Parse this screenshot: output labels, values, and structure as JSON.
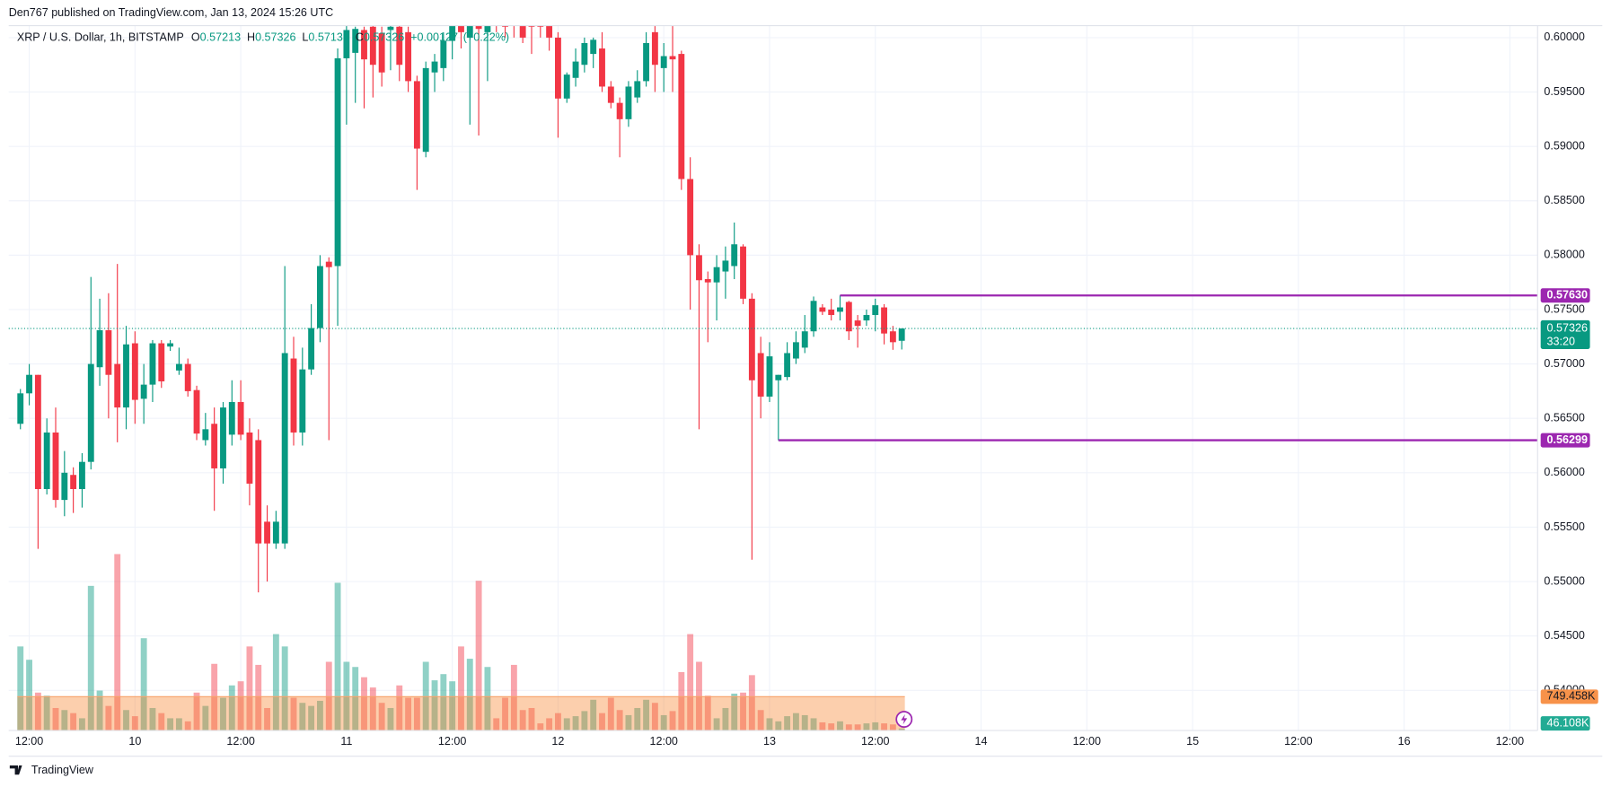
{
  "header": {
    "published": "Den767 published on TradingView.com, Jan 13, 2024 15:26 UTC"
  },
  "footer": {
    "brand": "TradingView"
  },
  "chart_data": {
    "type": "candlestick",
    "title": "XRP / U.S. Dollar, 1h, BITSTAMP",
    "ohlc": [
      {
        "key": "O",
        "value": 0.57213
      },
      {
        "key": "H",
        "value": 0.57326
      },
      {
        "key": "L",
        "value": 0.57133
      },
      {
        "key": "C",
        "value": 0.57326
      }
    ],
    "change": {
      "value": 0.00127,
      "label": "+0.00127"
    },
    "change_pct": {
      "value": 0.22,
      "label": "(+0.22%)"
    },
    "up_color": "#089981",
    "down_color": "#f23645",
    "x": [
      9.4583,
      9.5,
      9.5417,
      9.5833,
      9.625,
      9.6667,
      9.7083,
      9.75,
      9.7917,
      9.8333,
      9.875,
      9.9167,
      9.9583,
      10,
      10.0417,
      10.0833,
      10.125,
      10.1667,
      10.2083,
      10.25,
      10.2917,
      10.3333,
      10.375,
      10.4167,
      10.4583,
      10.5,
      10.5417,
      10.5833,
      10.625,
      10.6667,
      10.7083,
      10.75,
      10.7917,
      10.8333,
      10.875,
      10.9167,
      10.9583,
      11,
      11.0417,
      11.0833,
      11.125,
      11.1667,
      11.2083,
      11.25,
      11.2917,
      11.3333,
      11.375,
      11.4167,
      11.4583,
      11.5,
      11.5417,
      11.5833,
      11.625,
      11.6667,
      11.7083,
      11.75,
      11.7917,
      11.8333,
      11.875,
      11.9167,
      11.9583,
      12,
      12.0417,
      12.0833,
      12.125,
      12.1667,
      12.2083,
      12.25,
      12.2917,
      12.3333,
      12.375,
      12.4167,
      12.4583,
      12.5,
      12.5417,
      12.5833,
      12.625,
      12.6667,
      12.7083,
      12.75,
      12.7917,
      12.8333,
      12.875,
      12.9167,
      12.9583,
      13,
      13.0417,
      13.0833,
      13.125,
      13.1667,
      13.2083,
      13.25,
      13.2917,
      13.3333,
      13.375,
      13.4167,
      13.4583,
      13.5,
      13.5417,
      13.5833,
      13.625
    ],
    "open": [
      0.5645,
      0.5673,
      0.569,
      0.5585,
      0.5637,
      0.5575,
      0.5598,
      0.5585,
      0.561,
      0.5697,
      0.5731,
      0.57,
      0.566,
      0.5719,
      0.5668,
      0.5681,
      0.5719,
      0.5716,
      0.5694,
      0.57,
      0.5676,
      0.563,
      0.5645,
      0.5604,
      0.5635,
      0.5665,
      0.5637,
      0.563,
      0.5555,
      0.5535,
      0.5535,
      0.5705,
      0.5637,
      0.5695,
      0.5733,
      0.5794,
      0.579,
      0.5981,
      0.5986,
      0.6007,
      0.601,
      0.6004,
      0.6007,
      0.601,
      0.6005,
      0.596,
      0.5895,
      0.5968,
      0.5972,
      0.5997,
      0.602,
      0.6,
      0.6015,
      0.6005,
      0.6025,
      0.602,
      0.6015,
      0.6014,
      0.602,
      0.6025,
      0.6015,
      0.6,
      0.5944,
      0.5963,
      0.5975,
      0.5985,
      0.599,
      0.5955,
      0.594,
      0.5925,
      0.5945,
      0.596,
      0.6005,
      0.5972,
      0.5983,
      0.5985,
      0.587,
      0.58,
      0.5778,
      0.5775,
      0.5785,
      0.579,
      0.5808,
      0.576,
      0.571,
      0.567,
      0.5685,
      0.5688,
      0.5705,
      0.5715,
      0.573,
      0.5752,
      0.575,
      0.5748,
      0.5757,
      0.574,
      0.574,
      0.5745,
      0.5752,
      0.573,
      0.57213
    ],
    "high": [
      0.5677,
      0.57,
      0.569,
      0.565,
      0.566,
      0.562,
      0.5605,
      0.5618,
      0.578,
      0.576,
      0.5765,
      0.5792,
      0.5735,
      0.573,
      0.57,
      0.5722,
      0.5722,
      0.5722,
      0.5715,
      0.5705,
      0.568,
      0.5655,
      0.566,
      0.5665,
      0.5685,
      0.5685,
      0.565,
      0.564,
      0.557,
      0.5565,
      0.579,
      0.5725,
      0.5715,
      0.5755,
      0.58,
      0.5798,
      0.599,
      0.6015,
      0.601,
      0.601,
      0.6012,
      0.601,
      0.6015,
      0.6015,
      0.601,
      0.5965,
      0.5978,
      0.5985,
      0.6005,
      0.602,
      0.603,
      0.603,
      0.6025,
      0.602,
      0.6035,
      0.603,
      0.602,
      0.602,
      0.6025,
      0.603,
      0.6025,
      0.6005,
      0.5968,
      0.599,
      0.6,
      0.6,
      0.6005,
      0.596,
      0.5945,
      0.596,
      0.597,
      0.6005,
      0.6012,
      0.5995,
      0.6012,
      0.5988,
      0.589,
      0.581,
      0.5785,
      0.58,
      0.5808,
      0.583,
      0.581,
      0.5765,
      0.5725,
      0.572,
      0.569,
      0.572,
      0.573,
      0.5745,
      0.5762,
      0.5755,
      0.576,
      0.5763,
      0.5758,
      0.5745,
      0.575,
      0.576,
      0.5755,
      0.5735,
      0.57326
    ],
    "low": [
      0.564,
      0.5662,
      0.553,
      0.558,
      0.5568,
      0.556,
      0.5563,
      0.5568,
      0.5603,
      0.568,
      0.565,
      0.5628,
      0.564,
      0.5645,
      0.5645,
      0.5665,
      0.5678,
      0.5712,
      0.569,
      0.567,
      0.563,
      0.5625,
      0.5565,
      0.559,
      0.5625,
      0.563,
      0.557,
      0.549,
      0.55,
      0.553,
      0.553,
      0.5625,
      0.5625,
      0.569,
      0.572,
      0.563,
      0.5735,
      0.592,
      0.594,
      0.5935,
      0.5945,
      0.5955,
      0.597,
      0.596,
      0.595,
      0.586,
      0.589,
      0.595,
      0.596,
      0.598,
      0.599,
      0.592,
      0.591,
      0.596,
      0.6005,
      0.6,
      0.6,
      0.5995,
      0.5985,
      0.6,
      0.5988,
      0.5908,
      0.594,
      0.5955,
      0.5968,
      0.5972,
      0.595,
      0.5935,
      0.589,
      0.5918,
      0.594,
      0.5955,
      0.595,
      0.595,
      0.595,
      0.586,
      0.575,
      0.564,
      0.572,
      0.574,
      0.576,
      0.5778,
      0.5755,
      0.552,
      0.565,
      0.5665,
      0.56299,
      0.5685,
      0.57,
      0.571,
      0.5725,
      0.5745,
      0.574,
      0.574,
      0.5722,
      0.5715,
      0.5735,
      0.573,
      0.5718,
      0.5713,
      0.57133
    ],
    "close": [
      0.5673,
      0.569,
      0.5585,
      0.5637,
      0.5575,
      0.56,
      0.5585,
      0.561,
      0.57,
      0.5731,
      0.569,
      0.566,
      0.5718,
      0.5667,
      0.5681,
      0.5719,
      0.5684,
      0.5719,
      0.57,
      0.5675,
      0.5636,
      0.564,
      0.5604,
      0.566,
      0.5665,
      0.5635,
      0.559,
      0.5535,
      0.5535,
      0.5555,
      0.571,
      0.5637,
      0.5695,
      0.5733,
      0.579,
      0.5789,
      0.5981,
      0.6007,
      0.6008,
      0.598,
      0.5975,
      0.5968,
      0.601,
      0.5975,
      0.596,
      0.5898,
      0.5972,
      0.5978,
      0.5997,
      0.6015,
      0.6005,
      0.602,
      0.6008,
      0.6012,
      0.6015,
      0.601,
      0.6011,
      0.6,
      0.601,
      0.601,
      0.6,
      0.5944,
      0.5966,
      0.5978,
      0.5995,
      0.5998,
      0.5955,
      0.594,
      0.5925,
      0.5955,
      0.596,
      0.5995,
      0.5975,
      0.5983,
      0.598,
      0.587,
      0.58,
      0.5777,
      0.5775,
      0.5789,
      0.5795,
      0.581,
      0.576,
      0.5685,
      0.567,
      0.5707,
      0.569,
      0.571,
      0.572,
      0.573,
      0.5758,
      0.5748,
      0.5745,
      0.5752,
      0.573,
      0.5735,
      0.5745,
      0.5754,
      0.5728,
      0.572,
      0.57326
    ],
    "volume": [
      1861000,
      1566000,
      840000,
      772000,
      499000,
      454000,
      386000,
      272000,
      3201000,
      885000,
      545000,
      3904000,
      454000,
      318000,
      2043000,
      499000,
      386000,
      272000,
      272000,
      204000,
      840000,
      545000,
      1476000,
      726000,
      999000,
      1090000,
      1861000,
      1453000,
      499000,
      2134000,
      1861000,
      726000,
      613000,
      545000,
      658000,
      1521000,
      3269000,
      1521000,
      1407000,
      1180000,
      953000,
      613000,
      499000,
      999000,
      726000,
      726000,
      1521000,
      1112000,
      1249000,
      1090000,
      1861000,
      1589000,
      3314000,
      1407000,
      272000,
      726000,
      1453000,
      454000,
      499000,
      159000,
      272000,
      386000,
      272000,
      318000,
      431000,
      681000,
      386000,
      726000,
      454000,
      341000,
      499000,
      681000,
      613000,
      341000,
      431000,
      1294000,
      2134000,
      1521000,
      772000,
      272000,
      499000,
      817000,
      840000,
      1226000,
      454000,
      272000,
      204000,
      318000,
      386000,
      341000,
      272000,
      182000,
      159000,
      204000,
      136000,
      136000,
      159000,
      182000,
      159000,
      136000,
      46108
    ],
    "volume_ma": {
      "value": 749458,
      "label": "749.458K"
    },
    "last_volume": {
      "value": 46108,
      "label": "46.108K"
    },
    "last_price": {
      "value": 0.57326,
      "label": "0.57326",
      "countdown": "33:20"
    },
    "hlines": [
      {
        "value": 0.5763,
        "label": "0.57630",
        "start": 13.3333,
        "color": "#9c27b0"
      },
      {
        "value": 0.56299,
        "label": "0.56299",
        "start": 13.0417,
        "color": "#9c27b0"
      }
    ],
    "xlim": [
      9.403,
      16.631
    ],
    "ylim": [
      0.5363,
      0.6011
    ],
    "xticks": [
      {
        "value": 9.5,
        "label": "12:00"
      },
      10,
      {
        "value": 10.5,
        "label": "12:00"
      },
      11,
      {
        "value": 11.5,
        "label": "12:00"
      },
      12,
      {
        "value": 12.5,
        "label": "12:00"
      },
      13,
      {
        "value": 13.5,
        "label": "12:00"
      },
      14,
      {
        "value": 14.5,
        "label": "12:00"
      },
      15,
      {
        "value": 15.5,
        "label": "12:00"
      },
      16,
      {
        "value": 16.5,
        "label": "12:00"
      }
    ],
    "yticks": [
      {
        "value": 0.54,
        "label": "0.54000"
      },
      {
        "value": 0.545,
        "label": "0.54500"
      },
      {
        "value": 0.55,
        "label": "0.55000"
      },
      {
        "value": 0.555,
        "label": "0.55500"
      },
      {
        "value": 0.56,
        "label": "0.56000"
      },
      {
        "value": 0.565,
        "label": "0.56500"
      },
      {
        "value": 0.57,
        "label": "0.57000"
      },
      {
        "value": 0.575,
        "label": "0.57500"
      },
      {
        "value": 0.58,
        "label": "0.58000"
      },
      {
        "value": 0.585,
        "label": "0.58500"
      },
      {
        "value": 0.59,
        "label": "0.59000"
      },
      {
        "value": 0.595,
        "label": "0.59500"
      },
      {
        "value": 0.6,
        "label": "0.60000"
      }
    ],
    "grid": true
  }
}
